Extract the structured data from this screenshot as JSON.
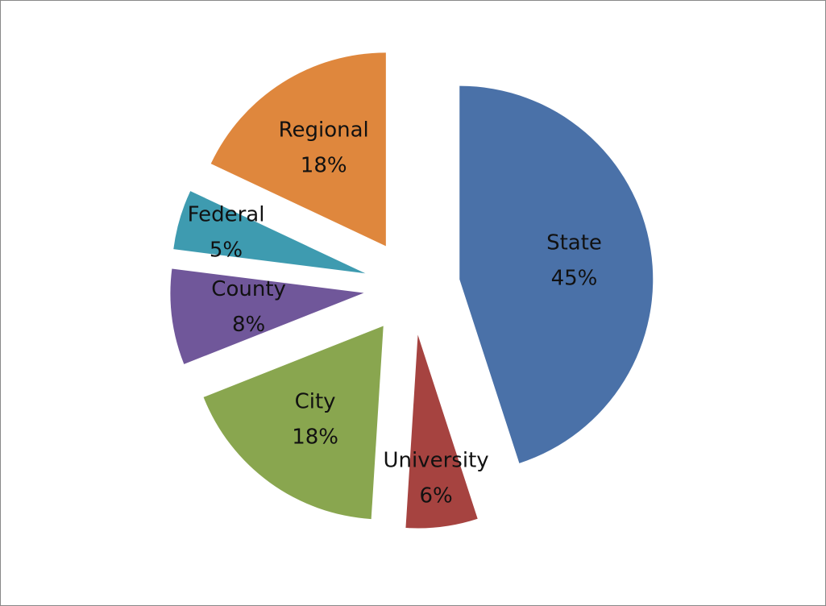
{
  "chart_data": {
    "type": "pie",
    "categories": [
      "State",
      "University",
      "City",
      "County",
      "Federal",
      "Regional"
    ],
    "values": [
      45,
      6,
      18,
      8,
      5,
      18
    ],
    "value_labels": [
      "45%",
      "6%",
      "18%",
      "8%",
      "5%",
      "18%"
    ],
    "colors": [
      "#4a71a8",
      "#a64340",
      "#89a64f",
      "#70579a",
      "#3e9bb0",
      "#df873d"
    ]
  }
}
